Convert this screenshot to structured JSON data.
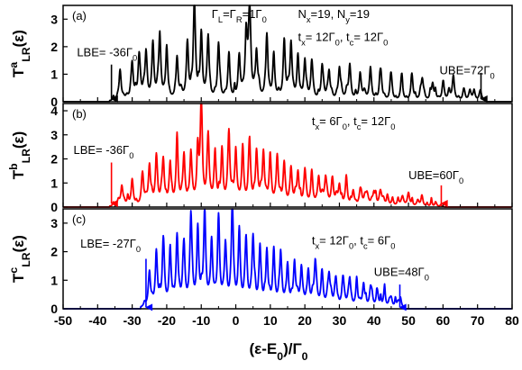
{
  "chart_data": [
    {
      "type": "line",
      "panel_label": "(a)",
      "ylabel": {
        "main": "T",
        "sup": "a",
        "sub": "LR",
        "tail": "(ε)"
      },
      "ylim": [
        0,
        3.5
      ],
      "yticks": [
        0,
        1,
        2,
        3
      ],
      "color": "#000000",
      "band": [
        -36,
        72
      ],
      "seed": 11,
      "peaks": [
        [
          -33.5,
          1.1
        ],
        [
          -30,
          1.3
        ],
        [
          -28,
          1.5
        ],
        [
          -26,
          1.6
        ],
        [
          -24,
          2.0
        ],
        [
          -22,
          2.3
        ],
        [
          -20,
          1.9
        ],
        [
          -17,
          1.5
        ],
        [
          -14,
          2.0
        ],
        [
          -12,
          3.4
        ],
        [
          -10,
          2.1
        ],
        [
          -8,
          2.2
        ],
        [
          -5,
          2.0
        ],
        [
          -2,
          1.6
        ],
        [
          1,
          1.4
        ],
        [
          3,
          2.2
        ],
        [
          4,
          3.3
        ],
        [
          6,
          1.6
        ],
        [
          9,
          2.3
        ],
        [
          11,
          1.5
        ],
        [
          14,
          1.9
        ],
        [
          16,
          2.0
        ],
        [
          18,
          1.5
        ],
        [
          20,
          1.4
        ],
        [
          22,
          1.3
        ],
        [
          25,
          1.2
        ],
        [
          27,
          1.0
        ],
        [
          30,
          1.1
        ],
        [
          33,
          1.2
        ],
        [
          36,
          0.9
        ],
        [
          39,
          1.1
        ],
        [
          42,
          1.0
        ],
        [
          45,
          0.9
        ],
        [
          48,
          0.8
        ],
        [
          51,
          0.9
        ],
        [
          54,
          0.7
        ],
        [
          57,
          0.6
        ],
        [
          60,
          0.5
        ],
        [
          63,
          0.6
        ],
        [
          66,
          0.4
        ],
        [
          69,
          0.3
        ]
      ],
      "annotations": [
        {
          "text": "Γ",
          "sub": "L",
          "text2": "=Γ",
          "sub2": "R",
          "text3": "=1Γ",
          "sub3": "0",
          "x": -7,
          "y": 3.05
        },
        {
          "text": "N",
          "sub": "x",
          "text2": "=19, N",
          "sub2": "y",
          "text3": "=19",
          "sub3": "",
          "x": 18,
          "y": 3.05
        },
        {
          "text": "t",
          "sub": "x",
          "text2": "= 12Γ",
          "sub2": "0",
          "text3": ", t",
          "sub3": "c",
          "text4": "= 12Γ",
          "sub4": "0",
          "x": 18,
          "y": 2.2
        },
        {
          "text": "LBE= -36Γ",
          "sub": "0",
          "x": -46,
          "y": 1.65
        },
        {
          "text": "UBE=72Γ",
          "sub": "0",
          "x": 59,
          "y": 1.0
        }
      ],
      "arrows": [
        {
          "x": -36,
          "y_from": 1.35,
          "y_to": 0.1
        },
        {
          "x": 71,
          "y_from": 1.05,
          "y_to": 0.1
        }
      ]
    },
    {
      "type": "line",
      "panel_label": "(b)",
      "ylabel": {
        "main": "T",
        "sup": "b",
        "sub": "LR",
        "tail": "(ε)"
      },
      "ylim": [
        0,
        4.3
      ],
      "yticks": [
        0,
        1,
        2,
        3,
        4
      ],
      "color": "#ff0000",
      "band": [
        -36,
        60
      ],
      "seed": 23,
      "peaks": [
        [
          -33,
          0.8
        ],
        [
          -30,
          1.0
        ],
        [
          -27,
          1.3
        ],
        [
          -25,
          1.6
        ],
        [
          -23,
          2.0
        ],
        [
          -21,
          1.8
        ],
        [
          -19,
          1.7
        ],
        [
          -17,
          2.5
        ],
        [
          -15,
          2.0
        ],
        [
          -13,
          2.1
        ],
        [
          -11,
          1.9
        ],
        [
          -10,
          4.3
        ],
        [
          -8,
          2.8
        ],
        [
          -6,
          2.1
        ],
        [
          -4,
          2.0
        ],
        [
          -2,
          2.9
        ],
        [
          0,
          2.2
        ],
        [
          2,
          2.2
        ],
        [
          4,
          2.5
        ],
        [
          6,
          2.0
        ],
        [
          8,
          2.1
        ],
        [
          10,
          1.8
        ],
        [
          12,
          2.0
        ],
        [
          14,
          1.7
        ],
        [
          16,
          1.5
        ],
        [
          18,
          1.3
        ],
        [
          20,
          1.4
        ],
        [
          22,
          1.2
        ],
        [
          24,
          1.1
        ],
        [
          26,
          1.0
        ],
        [
          28,
          1.0
        ],
        [
          30,
          0.8
        ],
        [
          32,
          1.0
        ],
        [
          34,
          0.6
        ],
        [
          36,
          0.5
        ],
        [
          38,
          0.4
        ],
        [
          40,
          0.5
        ],
        [
          42,
          0.3
        ],
        [
          44,
          0.3
        ],
        [
          47,
          0.2
        ],
        [
          50,
          0.2
        ],
        [
          54,
          0.15
        ],
        [
          58,
          0.1
        ]
      ],
      "annotations": [
        {
          "text": "t",
          "sub": "x",
          "text2": "= 6Γ",
          "sub2": "0",
          "text3": ", t",
          "sub3": "c",
          "text4": "= 12Γ",
          "sub4": "0",
          "x": 22,
          "y": 3.4
        },
        {
          "text": "LBE= -36Γ",
          "sub": "0",
          "x": -47,
          "y": 2.2
        },
        {
          "text": "UBE=60Γ",
          "sub": "0",
          "x": 50,
          "y": 1.15
        }
      ],
      "arrows": [
        {
          "x": -36,
          "y_from": 1.85,
          "y_to": 0.15
        },
        {
          "x": 59.5,
          "y_from": 0.9,
          "y_to": 0.15
        }
      ]
    },
    {
      "type": "line",
      "panel_label": "(c)",
      "ylabel": {
        "main": "T",
        "sup": "c",
        "sub": "LR",
        "tail": "(ε)"
      },
      "ylim": [
        0,
        3.5
      ],
      "yticks": [
        0,
        1,
        2,
        3
      ],
      "color": "#0000ff",
      "band": [
        -27,
        48
      ],
      "seed": 37,
      "peaks": [
        [
          -25,
          1.2
        ],
        [
          -23,
          1.6
        ],
        [
          -21,
          2.2
        ],
        [
          -19,
          1.8
        ],
        [
          -17,
          2.4
        ],
        [
          -15,
          2.0
        ],
        [
          -13,
          3.0
        ],
        [
          -11,
          2.5
        ],
        [
          -9,
          3.2
        ],
        [
          -7,
          2.2
        ],
        [
          -5,
          2.7
        ],
        [
          -3,
          2.0
        ],
        [
          -1,
          3.5
        ],
        [
          1,
          2.5
        ],
        [
          3,
          2.1
        ],
        [
          5,
          2.3
        ],
        [
          7,
          2.0
        ],
        [
          9,
          1.9
        ],
        [
          11,
          1.6
        ],
        [
          13,
          1.8
        ],
        [
          15,
          1.4
        ],
        [
          17,
          1.5
        ],
        [
          19,
          1.3
        ],
        [
          21,
          1.2
        ],
        [
          23,
          1.3
        ],
        [
          25,
          1.1
        ],
        [
          27,
          1.0
        ],
        [
          29,
          0.9
        ],
        [
          31,
          0.8
        ],
        [
          33,
          0.9
        ],
        [
          35,
          0.7
        ],
        [
          37,
          0.8
        ],
        [
          39,
          0.6
        ],
        [
          41,
          0.5
        ],
        [
          43,
          0.4
        ],
        [
          45,
          0.3
        ],
        [
          47,
          0.2
        ]
      ],
      "annotations": [
        {
          "text": "t",
          "sub": "x",
          "text2": "= 12Γ",
          "sub2": "0",
          "text3": ", t",
          "sub3": "c",
          "text4": "= 6Γ",
          "sub4": "0",
          "x": 22,
          "y": 2.25
        },
        {
          "text": "LBE= -27Γ",
          "sub": "0",
          "x": -45,
          "y": 2.15
        },
        {
          "text": "UBE=48Γ",
          "sub": "0",
          "x": 40,
          "y": 1.15
        }
      ],
      "arrows": [
        {
          "x": -26,
          "y_from": 1.75,
          "y_to": 0.05
        },
        {
          "x": 47.5,
          "y_from": 0.85,
          "y_to": 0.05
        }
      ]
    }
  ],
  "x_axis": {
    "label_main": "(ε-E",
    "label_sub": "0",
    "label_tail": ")/Γ",
    "label_sub2": "0",
    "xlim": [
      -50,
      80
    ],
    "ticks": [
      -50,
      -40,
      -30,
      -20,
      -10,
      0,
      10,
      20,
      30,
      40,
      50,
      60,
      70,
      80
    ]
  }
}
